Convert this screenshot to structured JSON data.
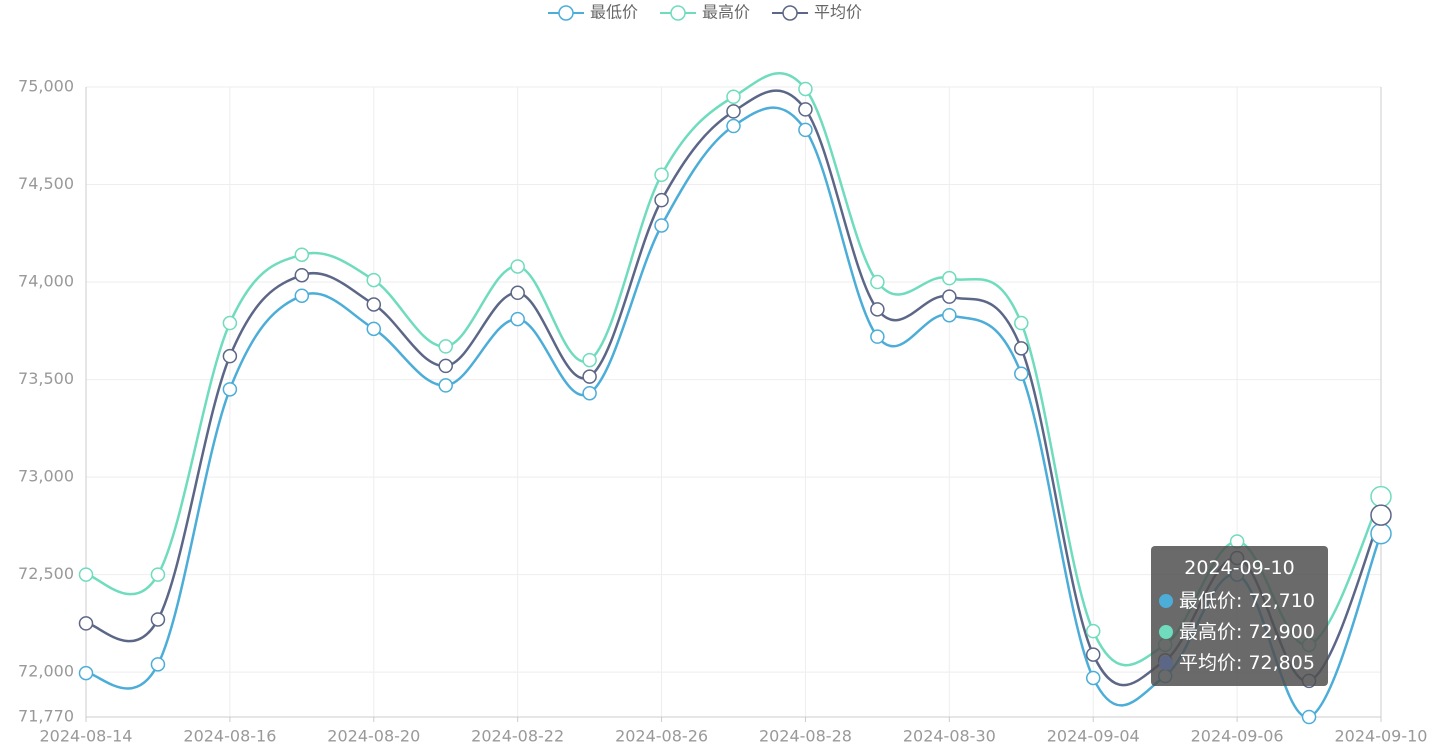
{
  "chart_data": {
    "type": "line",
    "categories": [
      "2024-08-14",
      null,
      "2024-08-16",
      null,
      "2024-08-20",
      null,
      "2024-08-22",
      null,
      "2024-08-26",
      null,
      "2024-08-28",
      null,
      "2024-08-30",
      null,
      "2024-09-04",
      null,
      "2024-09-06",
      null,
      "2024-09-10"
    ],
    "series": [
      {
        "name": "最低价",
        "color": "#4badd8",
        "values": [
          71995,
          72040,
          73450,
          73930,
          73760,
          73470,
          73810,
          73430,
          74290,
          74800,
          74780,
          73720,
          73830,
          73530,
          71970,
          71980,
          72500,
          71770,
          72710
        ]
      },
      {
        "name": "最高价",
        "color": "#6fdcbd",
        "values": [
          72500,
          72500,
          73790,
          74140,
          74010,
          73670,
          74080,
          73600,
          74550,
          74950,
          74990,
          74000,
          74020,
          73790,
          72210,
          72140,
          72670,
          72140,
          72900
        ]
      },
      {
        "name": "平均价",
        "color": "#5c6687",
        "values": [
          72250,
          72270,
          73620,
          74035,
          73885,
          73570,
          73945,
          73515,
          74420,
          74875,
          74885,
          73860,
          73925,
          73660,
          72090,
          72060,
          72585,
          71955,
          72805
        ]
      }
    ],
    "ylim": [
      71770,
      75000
    ],
    "yticks": [
      {
        "value": 71770,
        "label": "71,770"
      },
      {
        "value": 72000,
        "label": "72,000"
      },
      {
        "value": 72500,
        "label": "72,500"
      },
      {
        "value": 73000,
        "label": "73,000"
      },
      {
        "value": 73500,
        "label": "73,500"
      },
      {
        "value": 74000,
        "label": "74,000"
      },
      {
        "value": 74500,
        "label": "74,500"
      },
      {
        "value": 75000,
        "label": "75,000"
      }
    ],
    "grid": true,
    "legend": "top",
    "tooltip": {
      "title": "2024-09-10",
      "items": [
        "最低价: 72,710",
        "最高价: 72,900",
        "平均价: 72,805"
      ]
    }
  }
}
